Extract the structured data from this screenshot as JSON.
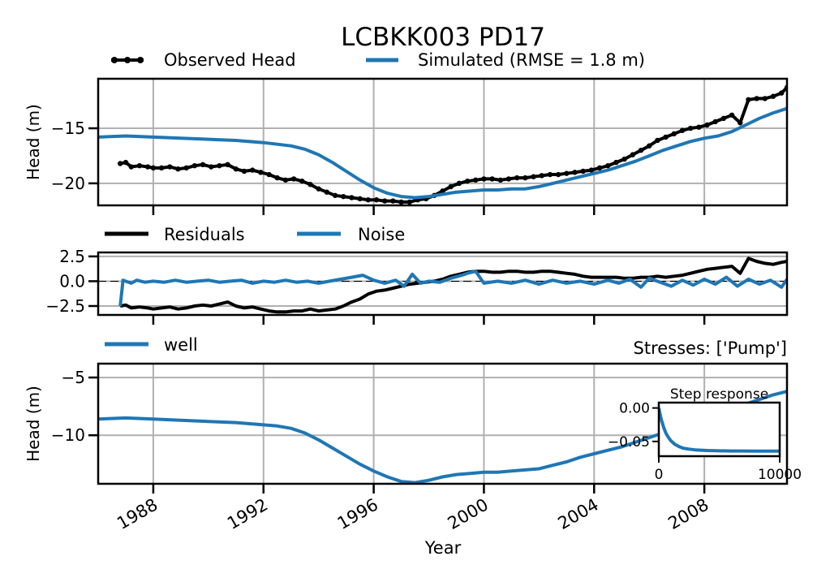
{
  "chart_data": [
    {
      "type": "line",
      "title": "LCBKK003 PD17",
      "ylabel": "Head (m)",
      "xlim": [
        1986.0,
        2011.0
      ],
      "ylim": [
        -22.0,
        -10.5
      ],
      "yticks": [
        -15,
        -20
      ],
      "xticks": [
        1988,
        1992,
        1996,
        2000,
        2004,
        2008
      ],
      "grid": true,
      "legend": {
        "location": "above",
        "columns": 2,
        "entries": [
          "Observed Head",
          "Simulated (RMSE = 1.8 m)"
        ]
      },
      "series": [
        {
          "name": "Observed Head",
          "color": "#000000",
          "marker": "circle",
          "x": [
            1986.8,
            1987.0,
            1987.2,
            1987.5,
            1987.8,
            1988.0,
            1988.3,
            1988.6,
            1988.9,
            1989.2,
            1989.5,
            1989.8,
            1990.1,
            1990.4,
            1990.7,
            1991.0,
            1991.3,
            1991.6,
            1991.9,
            1992.2,
            1992.5,
            1992.8,
            1993.1,
            1993.4,
            1993.7,
            1994.0,
            1994.3,
            1994.6,
            1994.9,
            1995.2,
            1995.5,
            1995.8,
            1996.1,
            1996.4,
            1996.7,
            1997.0,
            1997.3,
            1997.6,
            1997.9,
            1998.2,
            1998.5,
            1998.8,
            1999.1,
            1999.4,
            1999.7,
            2000.0,
            2000.3,
            2000.6,
            2000.9,
            2001.2,
            2001.5,
            2001.8,
            2002.1,
            2002.4,
            2002.7,
            2003.0,
            2003.3,
            2003.6,
            2003.9,
            2004.2,
            2004.5,
            2004.8,
            2005.1,
            2005.4,
            2005.7,
            2006.0,
            2006.3,
            2006.6,
            2006.9,
            2007.2,
            2007.5,
            2007.8,
            2008.1,
            2008.4,
            2008.7,
            2009.0,
            2009.3,
            2009.6,
            2009.9,
            2010.2,
            2010.5,
            2010.8,
            2011.0
          ],
          "values": [
            -18.2,
            -18.1,
            -18.5,
            -18.4,
            -18.5,
            -18.6,
            -18.6,
            -18.5,
            -18.7,
            -18.6,
            -18.4,
            -18.3,
            -18.5,
            -18.4,
            -18.3,
            -18.7,
            -18.9,
            -18.8,
            -19.0,
            -19.2,
            -19.5,
            -19.7,
            -19.6,
            -19.8,
            -20.1,
            -20.5,
            -20.8,
            -21.1,
            -21.2,
            -21.3,
            -21.4,
            -21.5,
            -21.5,
            -21.6,
            -21.6,
            -21.7,
            -21.7,
            -21.5,
            -21.4,
            -21.1,
            -20.7,
            -20.3,
            -20.0,
            -19.8,
            -19.7,
            -19.6,
            -19.6,
            -19.7,
            -19.6,
            -19.5,
            -19.5,
            -19.4,
            -19.3,
            -19.2,
            -19.2,
            -19.1,
            -19.0,
            -18.9,
            -18.8,
            -18.6,
            -18.4,
            -18.1,
            -17.8,
            -17.4,
            -17.0,
            -16.6,
            -16.1,
            -15.8,
            -15.5,
            -15.2,
            -15.0,
            -14.9,
            -14.7,
            -14.4,
            -14.1,
            -13.8,
            -14.5,
            -12.4,
            -12.3,
            -12.3,
            -12.1,
            -11.8,
            -11.3
          ]
        },
        {
          "name": "Simulated (RMSE = 1.8 m)",
          "color": "#1f77b4",
          "x": [
            1986.0,
            1987.0,
            1988.0,
            1989.0,
            1990.0,
            1991.0,
            1992.0,
            1993.0,
            1993.5,
            1994.0,
            1994.5,
            1995.0,
            1995.5,
            1996.0,
            1996.5,
            1997.0,
            1997.5,
            1998.0,
            1998.5,
            1999.0,
            1999.5,
            2000.0,
            2000.5,
            2001.0,
            2001.5,
            2002.0,
            2002.5,
            2003.0,
            2003.5,
            2004.0,
            2004.5,
            2005.0,
            2005.5,
            2006.0,
            2006.5,
            2007.0,
            2007.5,
            2008.0,
            2008.5,
            2009.0,
            2009.5,
            2010.0,
            2010.5,
            2011.0
          ],
          "values": [
            -15.8,
            -15.7,
            -15.8,
            -15.9,
            -16.0,
            -16.1,
            -16.3,
            -16.6,
            -16.9,
            -17.4,
            -18.1,
            -18.9,
            -19.7,
            -20.4,
            -20.9,
            -21.2,
            -21.3,
            -21.2,
            -21.0,
            -20.8,
            -20.7,
            -20.6,
            -20.6,
            -20.5,
            -20.5,
            -20.3,
            -20.0,
            -19.7,
            -19.4,
            -19.1,
            -18.8,
            -18.4,
            -18.0,
            -17.5,
            -17.0,
            -16.6,
            -16.2,
            -15.9,
            -15.7,
            -15.3,
            -14.7,
            -14.1,
            -13.6,
            -13.2
          ]
        }
      ]
    },
    {
      "type": "line",
      "xlim": [
        1986.0,
        2011.0
      ],
      "ylim": [
        -3.4,
        2.9
      ],
      "yticks": [
        2.5,
        0.0,
        -2.5
      ],
      "ytick_labels": [
        "2.5",
        "0.0",
        "−2.5"
      ],
      "grid": true,
      "zero_line": true,
      "legend": {
        "location": "above",
        "columns": 2,
        "entries": [
          "Residuals",
          "Noise"
        ]
      },
      "series": [
        {
          "name": "Residuals",
          "color": "#000000",
          "x": [
            1986.8,
            1987.0,
            1987.2,
            1987.5,
            1987.8,
            1988.0,
            1988.3,
            1988.6,
            1988.9,
            1989.2,
            1989.5,
            1989.8,
            1990.1,
            1990.4,
            1990.7,
            1991.0,
            1991.3,
            1991.6,
            1991.9,
            1992.2,
            1992.5,
            1992.8,
            1993.1,
            1993.4,
            1993.7,
            1994.0,
            1994.3,
            1994.6,
            1994.9,
            1995.2,
            1995.5,
            1995.8,
            1996.1,
            1996.4,
            1996.7,
            1997.0,
            1997.3,
            1997.6,
            1997.9,
            1998.2,
            1998.5,
            1998.8,
            1999.1,
            1999.4,
            1999.7,
            2000.0,
            2000.3,
            2000.6,
            2000.9,
            2001.2,
            2001.5,
            2001.8,
            2002.1,
            2002.4,
            2002.7,
            2003.0,
            2003.3,
            2003.6,
            2003.9,
            2004.2,
            2004.5,
            2004.8,
            2005.1,
            2005.4,
            2005.7,
            2006.0,
            2006.3,
            2006.6,
            2006.9,
            2007.2,
            2007.5,
            2007.8,
            2008.1,
            2008.4,
            2008.7,
            2009.0,
            2009.3,
            2009.6,
            2009.9,
            2010.2,
            2010.5,
            2010.8,
            2011.0
          ],
          "values": [
            -2.5,
            -2.4,
            -2.7,
            -2.6,
            -2.7,
            -2.8,
            -2.7,
            -2.6,
            -2.8,
            -2.7,
            -2.5,
            -2.4,
            -2.5,
            -2.3,
            -2.1,
            -2.5,
            -2.7,
            -2.6,
            -2.8,
            -3.0,
            -3.1,
            -3.1,
            -3.0,
            -3.0,
            -2.8,
            -3.0,
            -2.9,
            -2.8,
            -2.5,
            -2.1,
            -1.8,
            -1.3,
            -1.0,
            -0.9,
            -0.7,
            -0.5,
            -0.3,
            -0.2,
            -0.1,
            0.0,
            0.2,
            0.5,
            0.7,
            0.9,
            1.0,
            1.0,
            0.9,
            0.9,
            1.0,
            1.0,
            0.9,
            0.9,
            1.0,
            1.0,
            0.9,
            0.8,
            0.7,
            0.5,
            0.4,
            0.4,
            0.4,
            0.4,
            0.3,
            0.3,
            0.4,
            0.4,
            0.5,
            0.4,
            0.5,
            0.6,
            0.8,
            1.0,
            1.2,
            1.3,
            1.4,
            1.5,
            0.8,
            2.3,
            2.0,
            1.8,
            1.7,
            1.9,
            2.0
          ]
        },
        {
          "name": "Noise",
          "color": "#1f77b4",
          "x": [
            1986.8,
            1986.9,
            1987.2,
            1987.4,
            1987.7,
            1988.0,
            1988.4,
            1988.8,
            1989.2,
            1989.6,
            1990.0,
            1990.4,
            1990.8,
            1991.2,
            1991.6,
            1992.0,
            1992.4,
            1992.8,
            1993.2,
            1993.6,
            1994.0,
            1994.4,
            1994.8,
            1995.2,
            1995.6,
            1996.0,
            1996.4,
            1996.8,
            1997.1,
            1997.4,
            1997.7,
            1998.0,
            1998.4,
            1998.8,
            1999.2,
            1999.4,
            1999.7,
            2000.0,
            2000.5,
            2001.0,
            2001.5,
            2002.0,
            2002.5,
            2003.0,
            2003.5,
            2004.0,
            2004.5,
            2004.9,
            2005.3,
            2005.7,
            2006.0,
            2006.4,
            2006.8,
            2007.2,
            2007.6,
            2008.0,
            2008.4,
            2008.8,
            2009.2,
            2009.6,
            2010.0,
            2010.4,
            2010.8,
            2011.0
          ],
          "values": [
            -2.5,
            0.1,
            -0.2,
            0.1,
            -0.1,
            0.0,
            -0.1,
            0.1,
            -0.1,
            0.0,
            0.1,
            -0.1,
            0.0,
            0.1,
            -0.2,
            0.0,
            -0.1,
            0.1,
            -0.1,
            0.0,
            -0.2,
            0.0,
            0.2,
            0.4,
            0.6,
            0.1,
            -0.2,
            0.1,
            -0.5,
            0.7,
            -0.2,
            0.0,
            -0.1,
            0.3,
            0.6,
            0.8,
            1.0,
            -0.2,
            0.0,
            -0.2,
            0.1,
            -0.3,
            0.1,
            -0.2,
            0.0,
            -0.3,
            0.1,
            -0.2,
            0.2,
            -0.6,
            0.3,
            -0.1,
            -0.5,
            0.1,
            -0.4,
            0.2,
            -0.3,
            0.4,
            -0.5,
            0.2,
            -0.3,
            0.1,
            -0.6,
            0.2
          ]
        }
      ]
    },
    {
      "type": "line",
      "ylabel": "Head (m)",
      "xlabel": "Year",
      "xlim": [
        1986.0,
        2011.0
      ],
      "ylim": [
        -14.2,
        -3.8
      ],
      "yticks": [
        -5,
        -10
      ],
      "xticks": [
        1988,
        1992,
        1996,
        2000,
        2004,
        2008
      ],
      "grid": true,
      "right_title": "Stresses: ['Pump']",
      "legend": {
        "location": "above",
        "columns": 1,
        "entries": [
          "well"
        ]
      },
      "series": [
        {
          "name": "well",
          "color": "#1f77b4",
          "x": [
            1986.0,
            1987.0,
            1988.0,
            1989.0,
            1990.0,
            1991.0,
            1992.0,
            1992.5,
            1993.0,
            1993.5,
            1994.0,
            1994.5,
            1995.0,
            1995.5,
            1996.0,
            1996.5,
            1997.0,
            1997.5,
            1998.0,
            1998.5,
            1999.0,
            1999.5,
            2000.0,
            2000.5,
            2001.0,
            2001.5,
            2002.0,
            2002.5,
            2003.0,
            2003.5,
            2004.0,
            2004.5,
            2005.0,
            2005.5,
            2006.0,
            2006.5,
            2007.0,
            2007.5,
            2008.0,
            2008.5,
            2009.0,
            2009.5,
            2010.0,
            2010.5,
            2011.0
          ],
          "values": [
            -8.6,
            -8.5,
            -8.6,
            -8.7,
            -8.8,
            -8.9,
            -9.1,
            -9.2,
            -9.4,
            -9.8,
            -10.4,
            -11.1,
            -11.8,
            -12.5,
            -13.1,
            -13.6,
            -14.0,
            -14.1,
            -13.9,
            -13.6,
            -13.4,
            -13.3,
            -13.2,
            -13.2,
            -13.1,
            -13.0,
            -12.9,
            -12.6,
            -12.3,
            -11.9,
            -11.6,
            -11.3,
            -11.0,
            -10.6,
            -10.2,
            -9.8,
            -9.4,
            -9.0,
            -8.6,
            -8.2,
            -7.8,
            -7.3,
            -6.9,
            -6.5,
            -6.2
          ]
        }
      ]
    },
    {
      "type": "line",
      "title": "Step response",
      "xlim": [
        0,
        10000
      ],
      "ylim": [
        -0.072,
        0.008
      ],
      "xticks": [
        0,
        10000
      ],
      "yticks": [
        0.0,
        -0.05
      ],
      "ytick_labels": [
        "0.00",
        "−0.05"
      ],
      "grid": false,
      "series": [
        {
          "color": "#1f77b4",
          "x": [
            0,
            100,
            200,
            400,
            600,
            800,
            1000,
            1300,
            1600,
            2000,
            2500,
            3000,
            3500,
            4000,
            5000,
            6000,
            7000,
            8000,
            9000,
            10000
          ],
          "values": [
            0.0,
            -0.009,
            -0.017,
            -0.029,
            -0.038,
            -0.044,
            -0.049,
            -0.054,
            -0.057,
            -0.06,
            -0.0615,
            -0.0625,
            -0.063,
            -0.0635,
            -0.064,
            -0.0642,
            -0.0643,
            -0.0644,
            -0.0644,
            -0.0645
          ]
        }
      ]
    }
  ]
}
